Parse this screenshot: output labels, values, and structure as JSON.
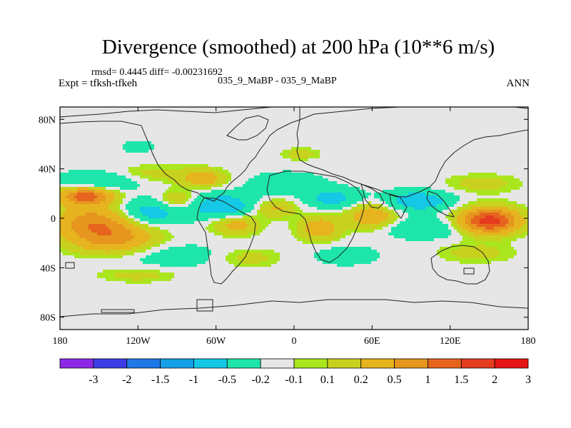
{
  "chart_data": {
    "type": "heatmap",
    "title": "Divergence (smoothed) at 200 hPa (10**6 m/s)",
    "stats_text": "rmsd= 0.4445 diff= -0.00231692",
    "experiment": "Expt = tfksh-tfkeh",
    "case_text": "035_9_MaBP - 035_9_MaBP",
    "season": "ANN",
    "xlim": [
      -180,
      180
    ],
    "ylim": [
      -90,
      90
    ],
    "x_ticks": [
      {
        "value": -180,
        "label": "180"
      },
      {
        "value": -120,
        "label": "120W"
      },
      {
        "value": -60,
        "label": "60W"
      },
      {
        "value": 0,
        "label": "0"
      },
      {
        "value": 60,
        "label": "60E"
      },
      {
        "value": 120,
        "label": "120E"
      },
      {
        "value": 180,
        "label": "180"
      }
    ],
    "y_ticks": [
      {
        "value": 80,
        "label": "80N"
      },
      {
        "value": 40,
        "label": "40N"
      },
      {
        "value": 0,
        "label": "0"
      },
      {
        "value": -40,
        "label": "40S"
      },
      {
        "value": -80,
        "label": "80S"
      }
    ],
    "colorbar": {
      "colors": [
        "#8c28e6",
        "#3c3ce6",
        "#1e78e6",
        "#14a0e6",
        "#14c8e6",
        "#1ee6aa",
        "#e6e6e6",
        "#aae61e",
        "#c8d21e",
        "#e6b41e",
        "#e6961e",
        "#e6641e",
        "#e63c1e",
        "#e61414"
      ],
      "labels": [
        "-3",
        "-2",
        "-1.5",
        "-1",
        "-0.5",
        "-0.2",
        "-0.1",
        "0.1",
        "0.2",
        "0.5",
        "1",
        "1.5",
        "2",
        "3"
      ]
    },
    "field_features": [
      {
        "lon": -155,
        "lat": -2,
        "lon_radius": 28,
        "lat_radius": 12,
        "value": 1.2
      },
      {
        "lon": -160,
        "lat": 18,
        "lon_radius": 20,
        "lat_radius": 7,
        "value": 1.8
      },
      {
        "lon": -140,
        "lat": -16,
        "lon_radius": 32,
        "lat_radius": 12,
        "value": 1.2
      },
      {
        "lon": -150,
        "lat": 30,
        "lon_radius": 28,
        "lat_radius": 8,
        "value": -0.6
      },
      {
        "lon": -110,
        "lat": 36,
        "lon_radius": 35,
        "lat_radius": 7,
        "value": 0.3
      },
      {
        "lon": -110,
        "lat": 5,
        "lon_radius": 25,
        "lat_radius": 10,
        "value": -0.8
      },
      {
        "lon": -90,
        "lat": 14,
        "lon_radius": 15,
        "lat_radius": 8,
        "value": 0.6
      },
      {
        "lon": -70,
        "lat": 32,
        "lon_radius": 16,
        "lat_radius": 7,
        "value": 0.8
      },
      {
        "lon": -55,
        "lat": 10,
        "lon_radius": 25,
        "lat_radius": 10,
        "value": -0.9
      },
      {
        "lon": -45,
        "lat": -5,
        "lon_radius": 18,
        "lat_radius": 8,
        "value": 0.7
      },
      {
        "lon": -15,
        "lat": 8,
        "lon_radius": 16,
        "lat_radius": 7,
        "value": 0.6
      },
      {
        "lon": -5,
        "lat": 28,
        "lon_radius": 25,
        "lat_radius": 8,
        "value": -0.5
      },
      {
        "lon": 30,
        "lat": 16,
        "lon_radius": 20,
        "lat_radius": 8,
        "value": -0.7
      },
      {
        "lon": 20,
        "lat": -8,
        "lon_radius": 16,
        "lat_radius": 10,
        "value": 0.8
      },
      {
        "lon": 60,
        "lat": 2,
        "lon_radius": 18,
        "lat_radius": 10,
        "value": 0.9
      },
      {
        "lon": 95,
        "lat": 14,
        "lon_radius": 25,
        "lat_radius": 8,
        "value": -0.9
      },
      {
        "lon": 100,
        "lat": -8,
        "lon_radius": 30,
        "lat_radius": 8,
        "value": -0.5
      },
      {
        "lon": 150,
        "lat": -2,
        "lon_radius": 22,
        "lat_radius": 10,
        "value": 2.3
      },
      {
        "lon": 145,
        "lat": 28,
        "lon_radius": 30,
        "lat_radius": 8,
        "value": 0.3
      },
      {
        "lon": 140,
        "lat": -28,
        "lon_radius": 30,
        "lat_radius": 8,
        "value": 0.3
      },
      {
        "lon": -95,
        "lat": -30,
        "lon_radius": 40,
        "lat_radius": 10,
        "value": -0.3
      },
      {
        "lon": -120,
        "lat": -46,
        "lon_radius": 30,
        "lat_radius": 6,
        "value": 0.3
      },
      {
        "lon": -35,
        "lat": -32,
        "lon_radius": 25,
        "lat_radius": 8,
        "value": 0.3
      },
      {
        "lon": 40,
        "lat": -30,
        "lon_radius": 25,
        "lat_radius": 8,
        "value": -0.3
      },
      {
        "lon": 5,
        "lat": 52,
        "lon_radius": 15,
        "lat_radius": 5,
        "value": 0.3
      },
      {
        "lon": -120,
        "lat": 58,
        "lon_radius": 12,
        "lat_radius": 5,
        "value": -0.3
      }
    ],
    "coastline_hint": "continent outlines drawn over the shaded field"
  }
}
